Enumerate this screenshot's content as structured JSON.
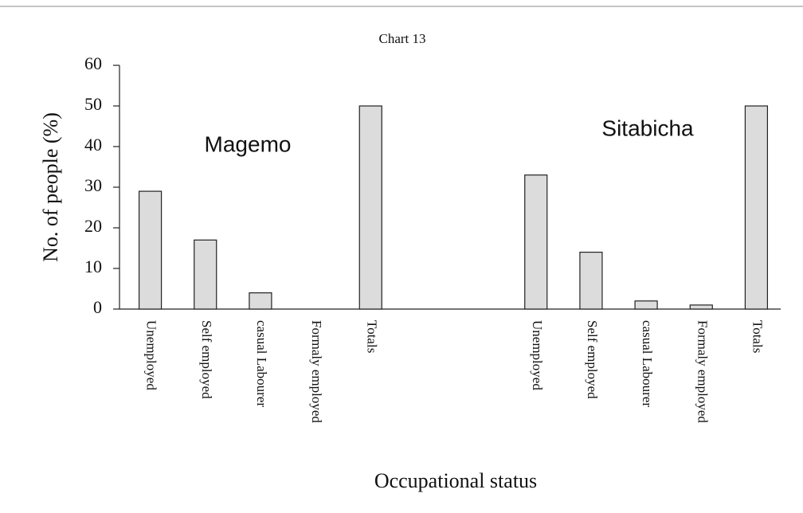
{
  "chart_data": {
    "type": "bar",
    "title": "Chart 13",
    "y_label": "No. of people (%)",
    "x_label": "Occupational status",
    "annotations": [
      "Magemo",
      "Sitabicha"
    ],
    "categories": [
      "Unemployed",
      "Self employed",
      "casual Labourer",
      "Formaly employed",
      "Totals",
      null,
      null,
      "Unemployed",
      "Self employed",
      "casual Labourer",
      "Formaly employed",
      "Totals"
    ],
    "values": [
      29,
      17,
      4,
      0,
      50,
      null,
      null,
      33,
      14,
      2,
      1,
      50
    ],
    "color": "#dcdcdc",
    "ylim": [
      0,
      60
    ],
    "yticks": [
      0,
      10,
      20,
      30,
      40,
      50,
      60
    ],
    "grid": false
  }
}
